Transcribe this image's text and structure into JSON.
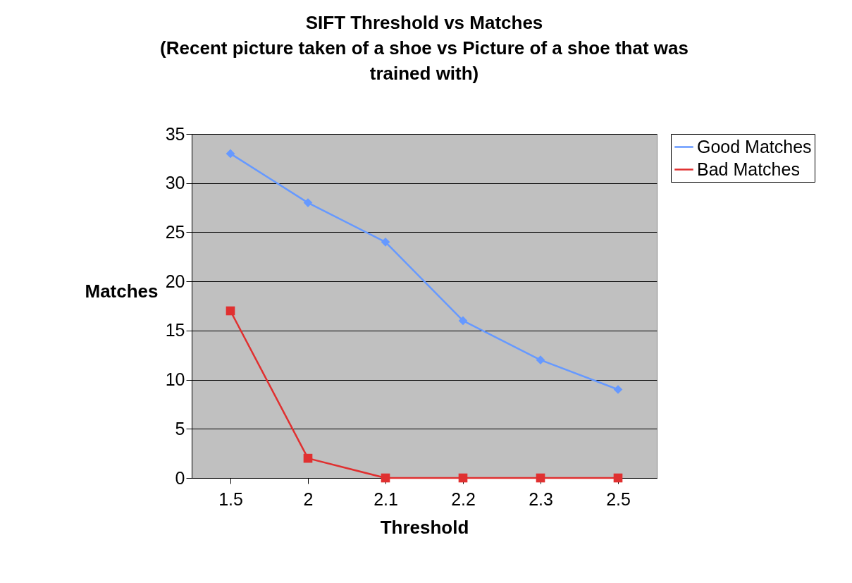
{
  "chart_data": {
    "type": "line",
    "title": "SIFT Threshold vs Matches",
    "subtitle": "(Recent picture taken of a shoe vs Picture of a shoe that was trained with)",
    "xlabel": "Threshold",
    "ylabel": "Matches",
    "categories": [
      "1.5",
      "2",
      "2.1",
      "2.2",
      "2.3",
      "2.5"
    ],
    "series": [
      {
        "name": "Good Matches",
        "color": "#6699ff",
        "marker": "diamond",
        "values": [
          33,
          28,
          24,
          16,
          12,
          9
        ]
      },
      {
        "name": "Bad Matches",
        "color": "#e03030",
        "marker": "square",
        "values": [
          17,
          2,
          0,
          0,
          0,
          0
        ]
      }
    ],
    "ylim": [
      0,
      35
    ],
    "yticks": [
      0,
      5,
      10,
      15,
      20,
      25,
      30,
      35
    ],
    "grid": "y",
    "legend": "right",
    "line_style": "solid"
  }
}
